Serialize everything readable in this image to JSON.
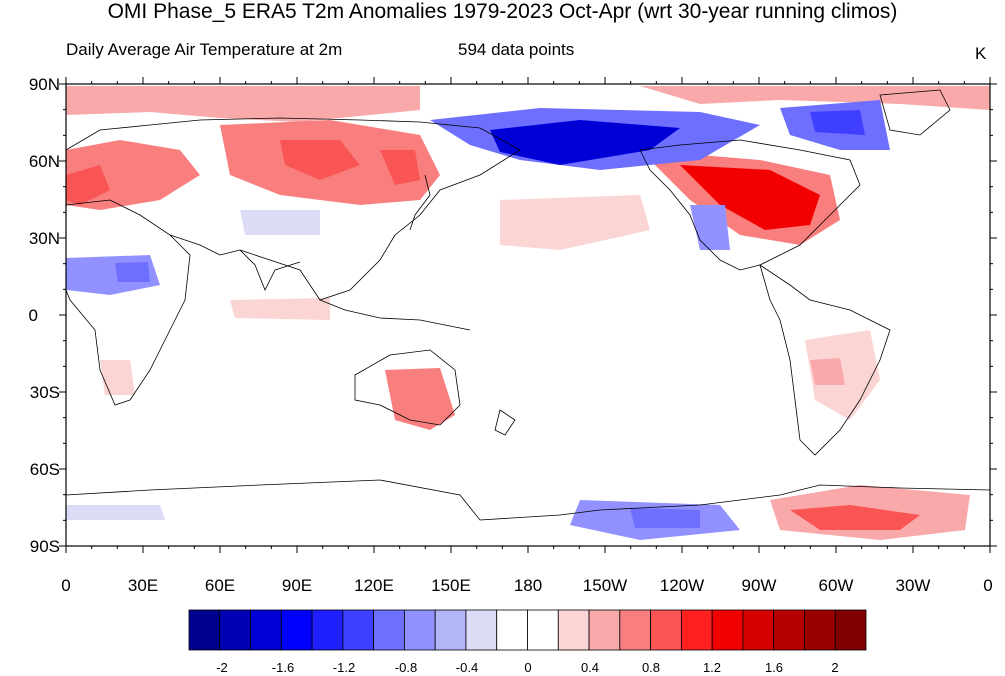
{
  "title": "OMI Phase_5 ERA5 T2m Anomalies 1979-2023 Oct-Apr (wrt 30-year running climos)",
  "subtitle_left": "Daily Average Air Temperature at 2m",
  "subtitle_center": "594 data points",
  "units": "K",
  "lat_labels": [
    "90N",
    "60N",
    "30N",
    "0",
    "30S",
    "60S",
    "90S"
  ],
  "lon_labels": [
    "0",
    "30E",
    "60E",
    "90E",
    "120E",
    "150E",
    "180",
    "150W",
    "120W",
    "90W",
    "60W",
    "30W",
    "0"
  ],
  "colorbar": {
    "labels": [
      "-2",
      "-1.6",
      "-1.2",
      "-0.8",
      "-0.4",
      "0",
      "0.4",
      "0.8",
      "1.2",
      "1.6",
      "2"
    ],
    "colors": [
      "#00008f",
      "#0000b5",
      "#0000d6",
      "#0000ff",
      "#1f1fff",
      "#3f3fff",
      "#6f6fff",
      "#9191ff",
      "#b4b4f9",
      "#dcdcf7",
      "#ffffff",
      "#ffffff",
      "#fbd4d4",
      "#f9a9a9",
      "#f97f7f",
      "#f95555",
      "#ff2020",
      "#f20000",
      "#d70000",
      "#b70000",
      "#9b0000",
      "#800000"
    ]
  },
  "map_colors": {
    "strong_warm": "#f20000",
    "warm": "#f97f7f",
    "light_warm": "#fbd4d4",
    "strong_cold": "#0000d6",
    "cold": "#6f6fff",
    "light_cold": "#dcdcf7",
    "coast": "#000000"
  }
}
